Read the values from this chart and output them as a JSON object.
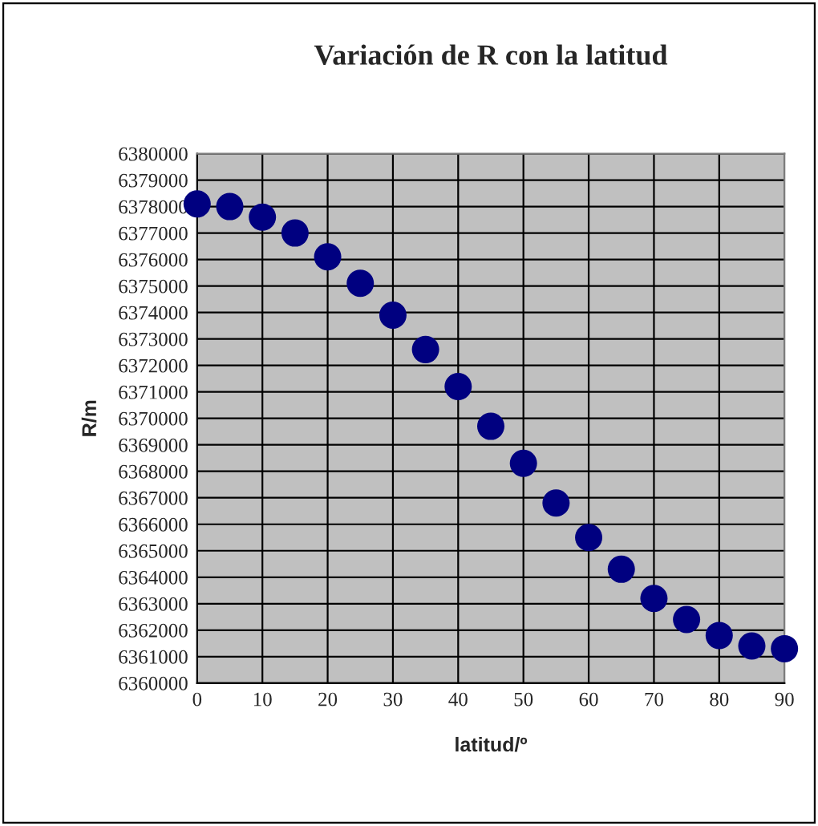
{
  "chart_data": {
    "type": "scatter",
    "title": "Variación de R con la latitud",
    "xlabel": "latitud/º",
    "ylabel": "R/m",
    "x": [
      0,
      5,
      10,
      15,
      20,
      25,
      30,
      35,
      40,
      45,
      50,
      55,
      60,
      65,
      70,
      75,
      80,
      85,
      90
    ],
    "series": [
      {
        "color": "#000080",
        "values": [
          6378100,
          6378000,
          6377600,
          6377000,
          6376100,
          6375100,
          6373900,
          6372600,
          6371200,
          6369700,
          6368300,
          6366800,
          6365500,
          6364300,
          6363200,
          6362400,
          6361800,
          6361400,
          6361300
        ]
      }
    ],
    "xlim": [
      0,
      90
    ],
    "xticks": [
      0,
      10,
      20,
      30,
      40,
      50,
      60,
      70,
      80,
      90
    ],
    "ylim": [
      6360000,
      6380000
    ],
    "yticks": [
      6360000,
      6361000,
      6362000,
      6363000,
      6364000,
      6365000,
      6366000,
      6367000,
      6368000,
      6369000,
      6370000,
      6371000,
      6372000,
      6373000,
      6374000,
      6375000,
      6376000,
      6377000,
      6378000,
      6379000,
      6380000
    ],
    "grid": true,
    "marker": "circle",
    "legend": false
  }
}
